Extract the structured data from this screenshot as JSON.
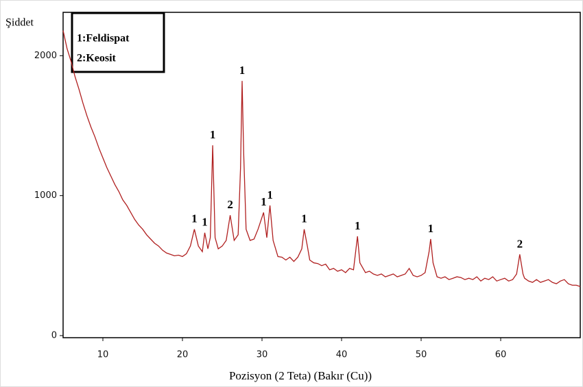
{
  "chart_data": {
    "type": "line",
    "y_label": "Şiddet",
    "x_label": "Pozisyon (2 Teta) (Bakır (Cu))",
    "legend_text": [
      "1:Feldispat",
      "2:Keosit"
    ],
    "color": "#b01f1f",
    "xlim": [
      5,
      70
    ],
    "ylim": [
      -15,
      2310
    ],
    "xticks": [
      10,
      20,
      30,
      40,
      50,
      60
    ],
    "yticks": [
      0,
      1000,
      2000
    ],
    "x": [
      5,
      5.5,
      6,
      6.5,
      7,
      7.5,
      8,
      8.5,
      9,
      9.5,
      10,
      10.5,
      11,
      11.5,
      12,
      12.5,
      13,
      13.5,
      14,
      14.5,
      15,
      15.5,
      16,
      16.5,
      17,
      17.5,
      18,
      18.5,
      19,
      19.5,
      20,
      20.5,
      21,
      21.5,
      22,
      22.5,
      22.8,
      23.2,
      23.5,
      23.8,
      24.1,
      24.5,
      25,
      25.5,
      26,
      26.5,
      27,
      27.3,
      27.5,
      27.7,
      28,
      28.5,
      29,
      29.5,
      30.2,
      30.6,
      31,
      31.4,
      32,
      32.5,
      33,
      33.5,
      34,
      34.5,
      35,
      35.3,
      35.7,
      36,
      36.5,
      37,
      37.5,
      38,
      38.5,
      39,
      39.5,
      40,
      40.5,
      41,
      41.5,
      42,
      42.3,
      43,
      43.5,
      44,
      44.5,
      45,
      45.5,
      46,
      46.5,
      47,
      47.5,
      48,
      48.5,
      49,
      49.5,
      50,
      50.5,
      51,
      51.2,
      51.5,
      52,
      52.5,
      53,
      53.5,
      54,
      54.5,
      55,
      55.5,
      56,
      56.5,
      57,
      57.5,
      58,
      58.5,
      59,
      59.5,
      60,
      60.5,
      61,
      61.5,
      62,
      62.4,
      62.8,
      63,
      63.5,
      64,
      64.5,
      65,
      65.5,
      66,
      66.5,
      67,
      67.5,
      68,
      68.5,
      69,
      69.5,
      70
    ],
    "values": [
      2180,
      2050,
      1960,
      1850,
      1760,
      1660,
      1570,
      1490,
      1420,
      1340,
      1270,
      1200,
      1140,
      1080,
      1030,
      970,
      930,
      880,
      830,
      790,
      760,
      720,
      690,
      660,
      640,
      610,
      590,
      580,
      570,
      575,
      565,
      585,
      640,
      760,
      640,
      600,
      735,
      620,
      700,
      1360,
      700,
      620,
      640,
      680,
      860,
      680,
      720,
      1200,
      1820,
      1300,
      760,
      680,
      690,
      760,
      880,
      700,
      930,
      680,
      565,
      560,
      540,
      560,
      530,
      560,
      620,
      760,
      640,
      540,
      520,
      515,
      500,
      510,
      470,
      480,
      460,
      470,
      450,
      480,
      470,
      710,
      520,
      450,
      460,
      440,
      430,
      440,
      420,
      430,
      440,
      420,
      430,
      440,
      480,
      430,
      420,
      430,
      450,
      600,
      690,
      520,
      420,
      410,
      420,
      400,
      410,
      420,
      415,
      400,
      410,
      400,
      420,
      390,
      410,
      400,
      420,
      390,
      400,
      410,
      390,
      400,
      440,
      580,
      440,
      410,
      390,
      380,
      400,
      380,
      390,
      400,
      380,
      370,
      390,
      400,
      370,
      360,
      360,
      350
    ],
    "annotations": [
      {
        "text": "1",
        "x": 21.5
      },
      {
        "text": "1",
        "x": 22.8
      },
      {
        "text": "1",
        "x": 23.8
      },
      {
        "text": "2",
        "x": 26
      },
      {
        "text": "1",
        "x": 27.5
      },
      {
        "text": "1",
        "x": 30.2
      },
      {
        "text": "1",
        "x": 31
      },
      {
        "text": "1",
        "x": 35.3
      },
      {
        "text": "1",
        "x": 42
      },
      {
        "text": "1",
        "x": 51.2
      },
      {
        "text": "2",
        "x": 62.4
      }
    ]
  }
}
